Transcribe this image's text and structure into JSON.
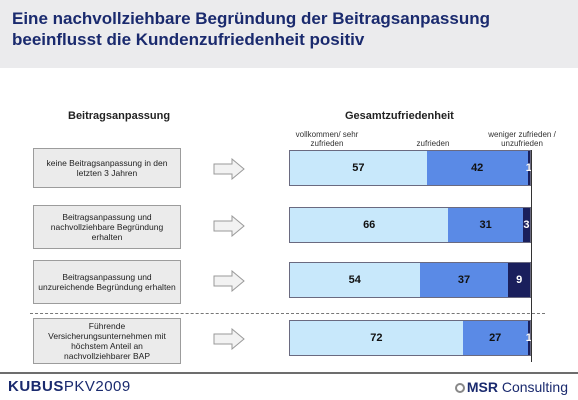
{
  "title": "Eine nachvollziehbare Begründung der Beitragsanpassung beeinflusst die Kundenzufriedenheit positiv",
  "left_header": "Beitragsanpassung",
  "right_header": "Gesamtzufriedenheit",
  "colors": {
    "very_satisfied": "#c8e8fb",
    "satisfied": "#5a8ae6",
    "less_satisfied": "#1a1f5c",
    "title": "#1a2a6e"
  },
  "chart_data": {
    "type": "bar",
    "orientation": "horizontal-stacked-100",
    "categories": [
      "keine Beitragsanpassung in den letzten 3 Jahren",
      "Beitragsanpassung und nachvollziehbare Begründung erhalten",
      "Beitragsanpassung und unzureichende Begründung erhalten",
      "Führende Versicherungsunternehmen mit höchstem Anteil an nachvollziehbarer BAP"
    ],
    "series": [
      {
        "name": "vollkommen/ sehr zufrieden",
        "values": [
          57,
          66,
          54,
          72
        ]
      },
      {
        "name": "zufrieden",
        "values": [
          42,
          31,
          37,
          27
        ]
      },
      {
        "name": "weniger zufrieden / unzufrieden",
        "values": [
          1,
          3,
          9,
          1
        ]
      }
    ],
    "xlim": [
      0,
      100
    ]
  },
  "footer": {
    "brand_left_bold": "KUBUS",
    "brand_left_rest": "PKV2009",
    "brand_right_bold": "MSR",
    "brand_right_rest": " Consulting"
  }
}
